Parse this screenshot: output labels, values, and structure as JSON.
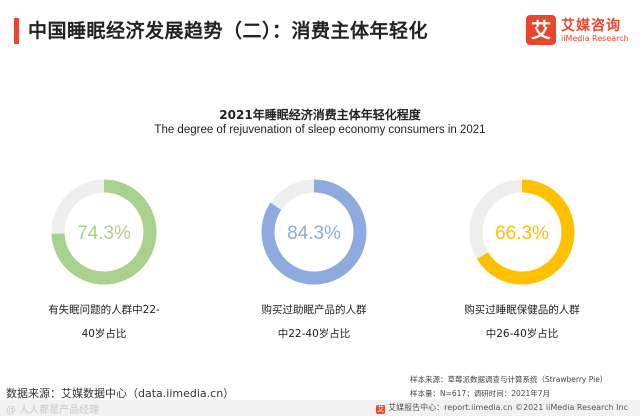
{
  "header": {
    "title": "中国睡眠经济发展趋势（二）：消费主体年轻化",
    "accent_color": "#e8472f"
  },
  "logo": {
    "mark": "艾",
    "cn": "艾媒咨询",
    "en": "iiMedia Research"
  },
  "chart_data": {
    "type": "pie",
    "variant": "donut",
    "title": "2021年睡眠经济消费主体年轻化程度",
    "subtitle": "The degree of rejuvenation of sleep economy consumers in 2021",
    "series": [
      {
        "name": "有失眠问题的人群中22-40岁占比",
        "value": 74.3,
        "value_label": "74.3%",
        "color": "#a9d18e",
        "label_lines": [
          "有失眠问题的人群中22-",
          "40岁占比"
        ]
      },
      {
        "name": "购买过助眠产品的人群中22-40岁占比",
        "value": 84.3,
        "value_label": "84.3%",
        "color": "#8faadc",
        "label_lines": [
          "购买过助眠产品的人群",
          "中22-40岁占比"
        ]
      },
      {
        "name": "购买过睡眠保健品的人群中26-40岁占比",
        "value": 66.3,
        "value_label": "66.3%",
        "color": "#ffc000",
        "label_lines": [
          "购买过睡眠保健品的人群",
          "中26-40岁占比"
        ]
      }
    ],
    "track_color": "#eeeeee",
    "max": 100
  },
  "source": {
    "left": "数据来源：艾媒数据中心（data.iimedia.cn）",
    "right_line1": "样本来源：草莓派数据调查与计算系统（Strawberry Pie）",
    "right_line2": "样本量：N=617；调研时间：2021年7月"
  },
  "footer": {
    "icon": "艾",
    "text": "艾媒报告中心：report.iimedia.cn  ©2021  iiMedia Research  Inc",
    "watermark": "@ 人人都是产品经理"
  }
}
